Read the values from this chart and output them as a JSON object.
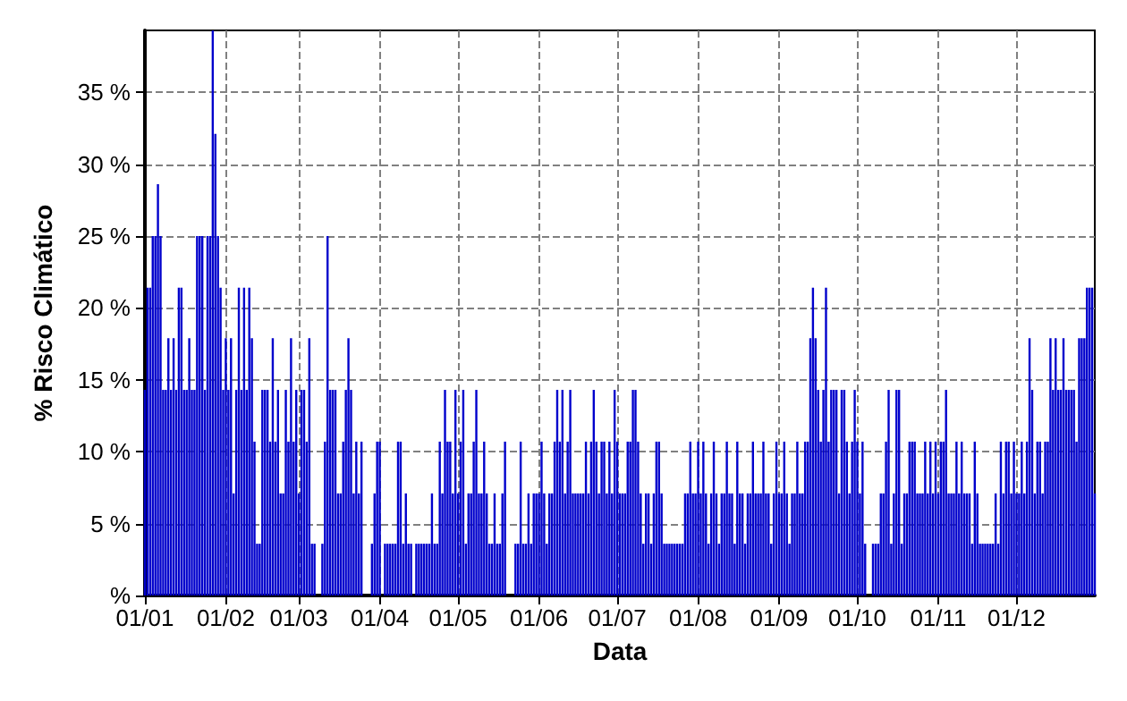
{
  "chart_data": {
    "type": "bar",
    "xlabel": "Data",
    "ylabel": "% Risco Climático",
    "color": "#0000cc",
    "grid": true,
    "ylim": [
      0,
      39.3
    ],
    "yticks": [
      {
        "value": 0,
        "label": "%"
      },
      {
        "value": 5,
        "label": "5 %"
      },
      {
        "value": 10,
        "label": "10 %"
      },
      {
        "value": 15,
        "label": "15 %"
      },
      {
        "value": 20,
        "label": "20 %"
      },
      {
        "value": 25,
        "label": "25 %"
      },
      {
        "value": 30,
        "label": "30 %"
      },
      {
        "value": 35,
        "label": "35 %"
      }
    ],
    "xlim": [
      "--01-01",
      "--12-31"
    ],
    "xticks": [
      {
        "value": "--01-01",
        "label": "01/01"
      },
      {
        "value": "--02-01",
        "label": "01/02"
      },
      {
        "value": "--03-01",
        "label": "01/03"
      },
      {
        "value": "--04-01",
        "label": "01/04"
      },
      {
        "value": "--05-01",
        "label": "01/05"
      },
      {
        "value": "--06-01",
        "label": "01/06"
      },
      {
        "value": "--07-01",
        "label": "01/07"
      },
      {
        "value": "--08-01",
        "label": "01/08"
      },
      {
        "value": "--09-01",
        "label": "01/09"
      },
      {
        "value": "--10-01",
        "label": "01/10"
      },
      {
        "value": "--11-01",
        "label": "01/11"
      },
      {
        "value": "--12-01",
        "label": "01/12"
      }
    ],
    "x": [
      "--01-01",
      "--01-02",
      "--01-03",
      "--01-04",
      "--01-05",
      "--01-06",
      "--01-07",
      "--01-08",
      "--01-09",
      "--01-10",
      "--01-11",
      "--01-12",
      "--01-13",
      "--01-14",
      "--01-15",
      "--01-16",
      "--01-17",
      "--01-18",
      "--01-19",
      "--01-20",
      "--01-21",
      "--01-22",
      "--01-23",
      "--01-24",
      "--01-25",
      "--01-26",
      "--01-27",
      "--01-28",
      "--01-29",
      "--01-30",
      "--01-31",
      "--02-01",
      "--02-02",
      "--02-03",
      "--02-04",
      "--02-05",
      "--02-06",
      "--02-07",
      "--02-08",
      "--02-09",
      "--02-10",
      "--02-11",
      "--02-12",
      "--02-13",
      "--02-14",
      "--02-15",
      "--02-16",
      "--02-17",
      "--02-18",
      "--02-19",
      "--02-20",
      "--02-21",
      "--02-22",
      "--02-23",
      "--02-24",
      "--02-25",
      "--02-26",
      "--02-27",
      "--02-28",
      "--03-01",
      "--03-02",
      "--03-03",
      "--03-04",
      "--03-05",
      "--03-06",
      "--03-07",
      "--03-08",
      "--03-09",
      "--03-10",
      "--03-11",
      "--03-12",
      "--03-13",
      "--03-14",
      "--03-15",
      "--03-16",
      "--03-17",
      "--03-18",
      "--03-19",
      "--03-20",
      "--03-21",
      "--03-22",
      "--03-23",
      "--03-24",
      "--03-25",
      "--03-26",
      "--03-27",
      "--03-28",
      "--03-29",
      "--03-30",
      "--03-31",
      "--04-01",
      "--04-02",
      "--04-03",
      "--04-04",
      "--04-05",
      "--04-06",
      "--04-07",
      "--04-08",
      "--04-09",
      "--04-10",
      "--04-11",
      "--04-12",
      "--04-13",
      "--04-14",
      "--04-15",
      "--04-16",
      "--04-17",
      "--04-18",
      "--04-19",
      "--04-20",
      "--04-21",
      "--04-22",
      "--04-23",
      "--04-24",
      "--04-25",
      "--04-26",
      "--04-27",
      "--04-28",
      "--04-29",
      "--04-30",
      "--05-01",
      "--05-02",
      "--05-03",
      "--05-04",
      "--05-05",
      "--05-06",
      "--05-07",
      "--05-08",
      "--05-09",
      "--05-10",
      "--05-11",
      "--05-12",
      "--05-13",
      "--05-14",
      "--05-15",
      "--05-16",
      "--05-17",
      "--05-18",
      "--05-19",
      "--05-20",
      "--05-21",
      "--05-22",
      "--05-23",
      "--05-24",
      "--05-25",
      "--05-26",
      "--05-27",
      "--05-28",
      "--05-29",
      "--05-30",
      "--05-31",
      "--06-01",
      "--06-02",
      "--06-03",
      "--06-04",
      "--06-05",
      "--06-06",
      "--06-07",
      "--06-08",
      "--06-09",
      "--06-10",
      "--06-11",
      "--06-12",
      "--06-13",
      "--06-14",
      "--06-15",
      "--06-16",
      "--06-17",
      "--06-18",
      "--06-19",
      "--06-20",
      "--06-21",
      "--06-22",
      "--06-23",
      "--06-24",
      "--06-25",
      "--06-26",
      "--06-27",
      "--06-28",
      "--06-29",
      "--06-30",
      "--07-01",
      "--07-02",
      "--07-03",
      "--07-04",
      "--07-05",
      "--07-06",
      "--07-07",
      "--07-08",
      "--07-09",
      "--07-10",
      "--07-11",
      "--07-12",
      "--07-13",
      "--07-14",
      "--07-15",
      "--07-16",
      "--07-17",
      "--07-18",
      "--07-19",
      "--07-20",
      "--07-21",
      "--07-22",
      "--07-23",
      "--07-24",
      "--07-25",
      "--07-26",
      "--07-27",
      "--07-28",
      "--07-29",
      "--07-30",
      "--07-31",
      "--08-01",
      "--08-02",
      "--08-03",
      "--08-04",
      "--08-05",
      "--08-06",
      "--08-07",
      "--08-08",
      "--08-09",
      "--08-10",
      "--08-11",
      "--08-12",
      "--08-13",
      "--08-14",
      "--08-15",
      "--08-16",
      "--08-17",
      "--08-18",
      "--08-19",
      "--08-20",
      "--08-21",
      "--08-22",
      "--08-23",
      "--08-24",
      "--08-25",
      "--08-26",
      "--08-27",
      "--08-28",
      "--08-29",
      "--08-30",
      "--08-31",
      "--09-01",
      "--09-02",
      "--09-03",
      "--09-04",
      "--09-05",
      "--09-06",
      "--09-07",
      "--09-08",
      "--09-09",
      "--09-10",
      "--09-11",
      "--09-12",
      "--09-13",
      "--09-14",
      "--09-15",
      "--09-16",
      "--09-17",
      "--09-18",
      "--09-19",
      "--09-20",
      "--09-21",
      "--09-22",
      "--09-23",
      "--09-24",
      "--09-25",
      "--09-26",
      "--09-27",
      "--09-28",
      "--09-29",
      "--09-30",
      "--10-01",
      "--10-02",
      "--10-03",
      "--10-04",
      "--10-05",
      "--10-06",
      "--10-07",
      "--10-08",
      "--10-09",
      "--10-10",
      "--10-11",
      "--10-12",
      "--10-13",
      "--10-14",
      "--10-15",
      "--10-16",
      "--10-17",
      "--10-18",
      "--10-19",
      "--10-20",
      "--10-21",
      "--10-22",
      "--10-23",
      "--10-24",
      "--10-25",
      "--10-26",
      "--10-27",
      "--10-28",
      "--10-29",
      "--10-30",
      "--10-31",
      "--11-01",
      "--11-02",
      "--11-03",
      "--11-04",
      "--11-05",
      "--11-06",
      "--11-07",
      "--11-08",
      "--11-09",
      "--11-10",
      "--11-11",
      "--11-12",
      "--11-13",
      "--11-14",
      "--11-15",
      "--11-16",
      "--11-17",
      "--11-18",
      "--11-19",
      "--11-20",
      "--11-21",
      "--11-22",
      "--11-23",
      "--11-24",
      "--11-25",
      "--11-26",
      "--11-27",
      "--11-28",
      "--11-29",
      "--11-30",
      "--12-01",
      "--12-02",
      "--12-03",
      "--12-04",
      "--12-05",
      "--12-06",
      "--12-07",
      "--12-08",
      "--12-09",
      "--12-10",
      "--12-11",
      "--12-12",
      "--12-13",
      "--12-14",
      "--12-15",
      "--12-16",
      "--12-17",
      "--12-18",
      "--12-19",
      "--12-20",
      "--12-21",
      "--12-22",
      "--12-23",
      "--12-24",
      "--12-25",
      "--12-26",
      "--12-27",
      "--12-28",
      "--12-29",
      "--12-30",
      "--12-31"
    ],
    "values": [
      14.3,
      21.4,
      21.4,
      25,
      25,
      28.6,
      25,
      14.3,
      14.3,
      17.9,
      14.3,
      17.9,
      14.3,
      21.4,
      21.4,
      14.3,
      14.3,
      17.9,
      14.3,
      14.3,
      25,
      25,
      25,
      14.3,
      25,
      25,
      39.3,
      32.1,
      25,
      21.4,
      14.3,
      17.9,
      14.3,
      17.9,
      7.1,
      14.3,
      21.4,
      14.3,
      21.4,
      14.3,
      21.4,
      17.9,
      10.7,
      3.6,
      3.6,
      14.3,
      14.3,
      14.3,
      10.7,
      17.9,
      10.7,
      14.3,
      7.1,
      7.1,
      14.3,
      10.7,
      17.9,
      10.7,
      14.3,
      7.1,
      14.3,
      14.3,
      10.7,
      17.9,
      3.6,
      3.6,
      0,
      0,
      3.6,
      10.7,
      25,
      14.3,
      14.3,
      14.3,
      7.1,
      7.1,
      10.7,
      14.3,
      17.9,
      14.3,
      7.1,
      10.7,
      7.1,
      10.7,
      0,
      0,
      0,
      3.6,
      7.1,
      10.7,
      10.7,
      0,
      3.6,
      3.6,
      3.6,
      3.6,
      3.6,
      10.7,
      10.7,
      3.6,
      7.1,
      3.6,
      3.6,
      0,
      3.6,
      3.6,
      3.6,
      3.6,
      3.6,
      3.6,
      7.1,
      3.6,
      3.6,
      10.7,
      7.1,
      14.3,
      10.7,
      10.7,
      7.1,
      14.3,
      7.1,
      10.7,
      14.3,
      3.6,
      7.1,
      7.1,
      10.7,
      14.3,
      7.1,
      7.1,
      10.7,
      7.1,
      3.6,
      3.6,
      7.1,
      3.6,
      3.6,
      7.1,
      10.7,
      0,
      0,
      0,
      3.6,
      3.6,
      10.7,
      3.6,
      3.6,
      7.1,
      3.6,
      7.1,
      7.1,
      7.1,
      10.7,
      7.1,
      3.6,
      7.1,
      7.1,
      10.7,
      14.3,
      10.7,
      14.3,
      7.1,
      10.7,
      14.3,
      7.1,
      7.1,
      7.1,
      7.1,
      7.1,
      10.7,
      7.1,
      10.7,
      14.3,
      10.7,
      7.1,
      10.7,
      10.7,
      7.1,
      10.7,
      7.1,
      14.3,
      10.7,
      7.1,
      7.1,
      7.1,
      10.7,
      10.7,
      14.3,
      14.3,
      10.7,
      7.1,
      3.6,
      7.1,
      7.1,
      3.6,
      7.1,
      10.7,
      10.7,
      7.1,
      3.6,
      3.6,
      3.6,
      3.6,
      3.6,
      3.6,
      3.6,
      3.6,
      7.1,
      7.1,
      10.7,
      7.1,
      7.1,
      10.7,
      7.1,
      10.7,
      7.1,
      3.6,
      7.1,
      10.7,
      7.1,
      3.6,
      7.1,
      7.1,
      10.7,
      7.1,
      7.1,
      3.6,
      10.7,
      7.1,
      7.1,
      3.6,
      7.1,
      7.1,
      10.7,
      7.1,
      7.1,
      7.1,
      10.7,
      7.1,
      7.1,
      3.6,
      7.1,
      10.7,
      7.1,
      7.1,
      10.7,
      7.1,
      3.6,
      7.1,
      7.1,
      10.7,
      7.1,
      7.1,
      10.7,
      10.7,
      17.9,
      21.4,
      17.9,
      14.3,
      10.7,
      14.3,
      21.4,
      10.7,
      14.3,
      14.3,
      14.3,
      7.1,
      14.3,
      14.3,
      10.7,
      7.1,
      10.7,
      14.3,
      10.7,
      7.1,
      10.7,
      3.6,
      0,
      0,
      3.6,
      3.6,
      3.6,
      7.1,
      7.1,
      10.7,
      14.3,
      3.6,
      7.1,
      14.3,
      14.3,
      3.6,
      7.1,
      7.1,
      10.7,
      10.7,
      10.7,
      7.1,
      7.1,
      7.1,
      10.7,
      7.1,
      10.7,
      7.1,
      10.7,
      7.1,
      10.7,
      10.7,
      14.3,
      7.1,
      7.1,
      7.1,
      10.7,
      7.1,
      10.7,
      7.1,
      7.1,
      7.1,
      3.6,
      10.7,
      7.1,
      3.6,
      3.6,
      3.6,
      3.6,
      3.6,
      3.6,
      7.1,
      3.6,
      10.7,
      7.1,
      10.7,
      10.7,
      7.1,
      10.7,
      7.1,
      7.1,
      10.7,
      7.1,
      10.7,
      17.9,
      14.3,
      7.1,
      10.7,
      10.7,
      7.1,
      10.7,
      10.7,
      17.9,
      14.3,
      17.9,
      14.3,
      14.3,
      17.9,
      14.3,
      14.3,
      14.3,
      14.3,
      10.7,
      17.9,
      17.9,
      17.9,
      21.4,
      21.4,
      21.4,
      7.1
    ]
  }
}
